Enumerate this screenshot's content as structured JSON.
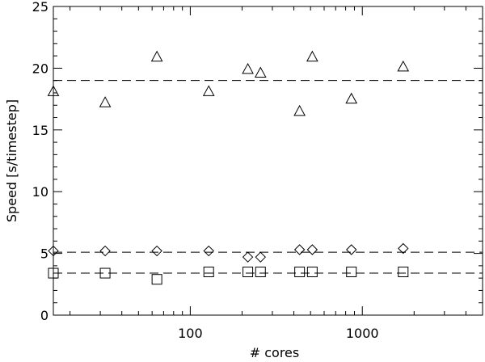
{
  "chart_data": {
    "type": "scatter",
    "title": "",
    "xlabel": "# cores",
    "ylabel": "Speed [s/timestep]",
    "x_scale": "log",
    "xlim": [
      16,
      5000
    ],
    "ylim": [
      0,
      25
    ],
    "x_ticks": [
      {
        "value": 100,
        "label": "100"
      },
      {
        "value": 1000,
        "label": "1000"
      }
    ],
    "y_ticks": [
      {
        "value": 0,
        "label": "0"
      },
      {
        "value": 5,
        "label": "5"
      },
      {
        "value": 10,
        "label": "10"
      },
      {
        "value": 15,
        "label": "15"
      },
      {
        "value": 20,
        "label": "20"
      },
      {
        "value": 25,
        "label": "25"
      }
    ],
    "grid": false,
    "legend": "none",
    "series": [
      {
        "marker": "triangle",
        "x": [
          16,
          32,
          64,
          128,
          216,
          256,
          432,
          512,
          864,
          1728
        ],
        "y": [
          18.1,
          17.2,
          20.9,
          18.1,
          19.9,
          19.6,
          16.5,
          20.9,
          17.5,
          20.1
        ]
      },
      {
        "marker": "diamond",
        "x": [
          16,
          32,
          64,
          128,
          216,
          256,
          432,
          512,
          864,
          1728
        ],
        "y": [
          5.2,
          5.2,
          5.2,
          5.2,
          4.7,
          4.7,
          5.3,
          5.3,
          5.3,
          5.4
        ]
      },
      {
        "marker": "square",
        "x": [
          16,
          32,
          64,
          128,
          216,
          256,
          432,
          512,
          864,
          1728
        ],
        "y": [
          3.4,
          3.4,
          2.9,
          3.5,
          3.5,
          3.5,
          3.5,
          3.5,
          3.5,
          3.5
        ]
      }
    ],
    "reference_lines": [
      {
        "y": 19.0,
        "style": "dashed"
      },
      {
        "y": 5.1,
        "style": "dashed"
      },
      {
        "y": 3.4,
        "style": "dashed"
      }
    ]
  }
}
